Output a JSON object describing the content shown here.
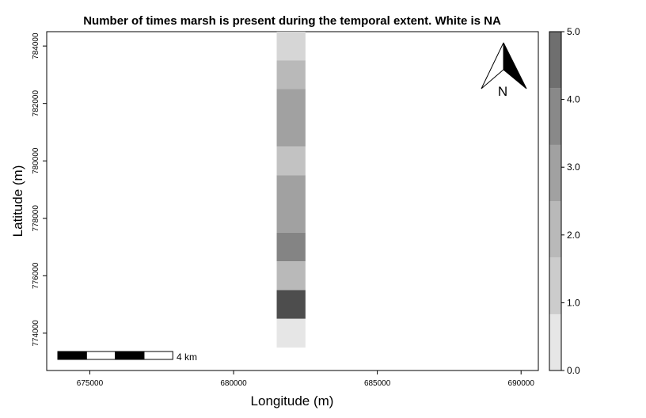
{
  "title": "Number of times marsh is present during the temporal extent. White is NA",
  "chart_data": {
    "type": "heatmap",
    "xlabel": "Longitude (m)",
    "ylabel": "Latitude (m)",
    "xlim": [
      673500,
      690600
    ],
    "ylim": [
      772700,
      784500
    ],
    "x_ticks": [
      675000,
      680000,
      685000,
      690000
    ],
    "x_tick_labels": [
      "675000",
      "680000",
      "685000",
      "690000"
    ],
    "y_ticks": [
      774000,
      776000,
      778000,
      780000,
      782000,
      784000
    ],
    "y_tick_labels": [
      "774000",
      "776000",
      "778000",
      "780000",
      "782000",
      "784000"
    ],
    "cell_x_range": [
      681500,
      682500
    ],
    "cells": [
      {
        "y0": 783500,
        "y1": 784500,
        "value": 0.8
      },
      {
        "y0": 782500,
        "y1": 783500,
        "value": 1.3
      },
      {
        "y0": 780500,
        "y1": 782500,
        "value": 1.7
      },
      {
        "y0": 779500,
        "y1": 780500,
        "value": 1.2
      },
      {
        "y0": 777500,
        "y1": 779500,
        "value": 1.7
      },
      {
        "y0": 776500,
        "y1": 777500,
        "value": 2.9
      },
      {
        "y0": 775500,
        "y1": 776500,
        "value": 1.3
      },
      {
        "y0": 774500,
        "y1": 775500,
        "value": 4.3
      },
      {
        "y0": 773500,
        "y1": 774500,
        "value": 0.5
      }
    ],
    "legend": {
      "min": 0.0,
      "max": 5.0,
      "breaks": [
        0,
        0.83,
        1.67,
        2.5,
        3.33,
        4.17,
        5.0
      ],
      "colors": [
        "#e6e6e6",
        "#cccccc",
        "#b9b9b9",
        "#a1a1a1",
        "#898989",
        "#6f6f6f",
        "#4d4d4d"
      ],
      "ticks": [
        0.0,
        1.0,
        2.0,
        3.0,
        4.0,
        5.0
      ],
      "tick_labels": [
        "0.0",
        "1.0",
        "2.0",
        "3.0",
        "4.0",
        "5.0"
      ]
    },
    "scale_bar": {
      "label": "4 km",
      "length_m": 4000,
      "segments": 4
    },
    "north_arrow": {
      "label": "N"
    },
    "colors": {
      "cell_colors_by_value": {
        "0.5": "#e6e6e6",
        "0.8": "#d6d6d6",
        "1.2": "#c2c2c2",
        "1.3": "#b9b9b9",
        "1.7": "#a1a1a1",
        "2.9": "#848484",
        "4.3": "#4d4d4d"
      }
    }
  }
}
